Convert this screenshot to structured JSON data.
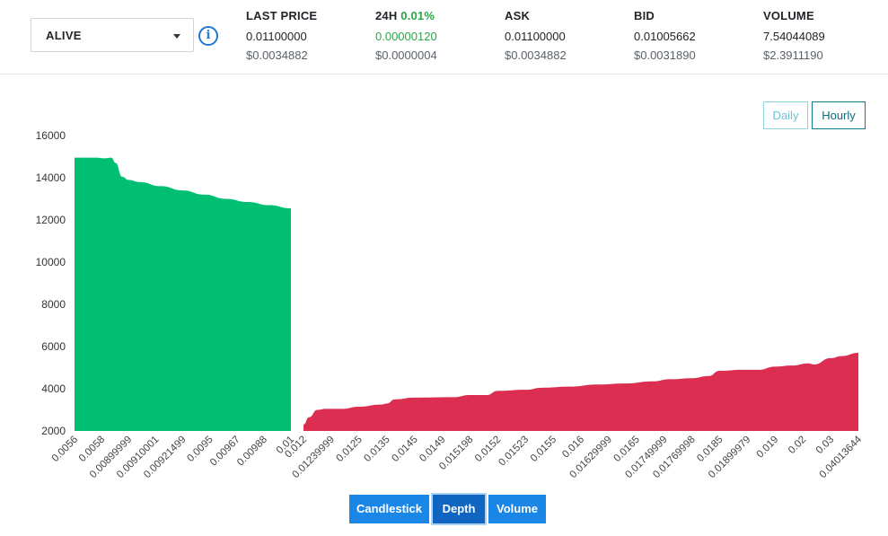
{
  "pair": {
    "label": "ALIVE"
  },
  "info_icon": "info-circle-icon",
  "stats": {
    "last_price": {
      "title": "LAST PRICE",
      "value": "0.01100000",
      "usd": "$0.0034882"
    },
    "change_24h": {
      "title": "24H",
      "change": "0.01%",
      "value": "0.00000120",
      "usd": "$0.0000004"
    },
    "ask": {
      "title": "ASK",
      "value": "0.01100000",
      "usd": "$0.0034882"
    },
    "bid": {
      "title": "BID",
      "value": "0.01005662",
      "usd": "$0.0031890"
    },
    "volume": {
      "title": "VOLUME",
      "value": "7.54044089",
      "usd": "$2.3911190"
    }
  },
  "range_buttons": {
    "daily": "Daily",
    "hourly": "Hourly",
    "active": "Hourly"
  },
  "view_buttons": {
    "candlestick": "Candlestick",
    "depth": "Depth",
    "volume": "Volume",
    "active": "Depth"
  },
  "colors": {
    "bids": "#00bf72",
    "asks": "#dc2e50",
    "change_positive": "#28a745",
    "button_blue": "#1a86e6"
  },
  "chart_data": {
    "type": "area",
    "title": "",
    "xlabel": "",
    "ylabel": "",
    "ylim": [
      2000,
      16000
    ],
    "y_ticks": [
      2000,
      4000,
      6000,
      8000,
      10000,
      12000,
      14000,
      16000
    ],
    "grid": false,
    "legend": "none",
    "series": [
      {
        "side": "bids",
        "x_ticks": [
          "0.0056",
          "0.0058",
          "0.00899999",
          "0.00910001",
          "0.00921499",
          "0.0095",
          "0.00967",
          "0.00988",
          "0.01"
        ],
        "points": [
          [
            0.0,
            14950
          ],
          [
            0.05,
            14950
          ],
          [
            0.1,
            14950
          ],
          [
            0.14,
            14920
          ],
          [
            0.17,
            14950
          ],
          [
            0.19,
            14700
          ],
          [
            0.22,
            14050
          ],
          [
            0.25,
            13900
          ],
          [
            0.3,
            13800
          ],
          [
            0.4,
            13600
          ],
          [
            0.5,
            13400
          ],
          [
            0.6,
            13200
          ],
          [
            0.7,
            13000
          ],
          [
            0.8,
            12850
          ],
          [
            0.9,
            12700
          ],
          [
            1.0,
            12550
          ]
        ]
      },
      {
        "side": "asks",
        "x_ticks": [
          "0.012",
          "0.01239999",
          "0.0125",
          "0.0135",
          "0.0145",
          "0.0149",
          "0.015198",
          "0.0152",
          "0.01523",
          "0.0155",
          "0.016",
          "0.01629999",
          "0.0165",
          "0.01749999",
          "0.01769998",
          "0.0185",
          "0.01899979",
          "0.019",
          "0.02",
          "0.03",
          "0.04013644"
        ],
        "points": [
          [
            0.0,
            2300
          ],
          [
            0.01,
            2650
          ],
          [
            0.025,
            3000
          ],
          [
            0.04,
            3050
          ],
          [
            0.07,
            3050
          ],
          [
            0.1,
            3150
          ],
          [
            0.14,
            3250
          ],
          [
            0.15,
            3300
          ],
          [
            0.165,
            3500
          ],
          [
            0.2,
            3580
          ],
          [
            0.27,
            3600
          ],
          [
            0.3,
            3700
          ],
          [
            0.33,
            3700
          ],
          [
            0.35,
            3900
          ],
          [
            0.4,
            3950
          ],
          [
            0.43,
            4050
          ],
          [
            0.48,
            4100
          ],
          [
            0.53,
            4200
          ],
          [
            0.58,
            4250
          ],
          [
            0.63,
            4350
          ],
          [
            0.66,
            4450
          ],
          [
            0.7,
            4500
          ],
          [
            0.73,
            4600
          ],
          [
            0.75,
            4850
          ],
          [
            0.79,
            4900
          ],
          [
            0.82,
            4900
          ],
          [
            0.85,
            5050
          ],
          [
            0.88,
            5100
          ],
          [
            0.91,
            5200
          ],
          [
            0.92,
            5150
          ],
          [
            0.95,
            5450
          ],
          [
            0.97,
            5550
          ],
          [
            1.0,
            5700
          ]
        ]
      }
    ]
  }
}
